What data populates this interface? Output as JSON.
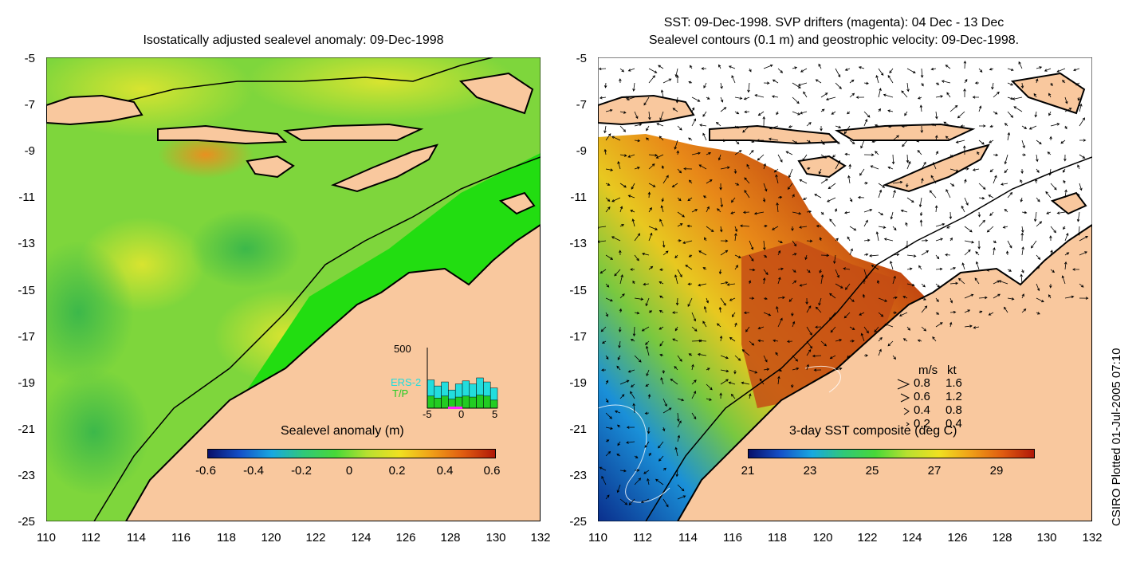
{
  "left_panel": {
    "title": "Isostatically adjusted sealevel anomaly: 09-Dec-1998",
    "colorbar": {
      "label": "Sealevel anomaly (m)",
      "ticks": [
        "-0.6",
        "-0.4",
        "-0.2",
        "0",
        "0.2",
        "0.4",
        "0.6"
      ],
      "min": -0.6,
      "max": 0.6
    },
    "histogram": {
      "ymax_label": "500",
      "legend": [
        "ERS-2",
        "T/P"
      ],
      "xticks": [
        "-5",
        "0",
        "5"
      ],
      "ers2_color": "#22dddd",
      "tp_color": "#22cc22",
      "ers2_values": [
        0.28,
        0.22,
        0.26,
        0.18,
        0.24,
        0.27,
        0.24,
        0.3,
        0.26,
        0.2
      ],
      "tp_values": [
        0.12,
        0.1,
        0.12,
        0.09,
        0.11,
        0.12,
        0.11,
        0.13,
        0.12,
        0.08
      ]
    }
  },
  "right_panel": {
    "title_line1": "SST: 09-Dec-1998. SVP drifters (magenta): 04 Dec - 13 Dec",
    "title_line2": "Sealevel contours (0.1 m) and geostrophic velocity: 09-Dec-1998.",
    "colorbar": {
      "label": "3-day SST composite (deg C)",
      "ticks": [
        "21",
        "23",
        "25",
        "27",
        "29"
      ],
      "min": 20.9,
      "max": 29.5
    },
    "velocity_legend": {
      "header_ms": "m/s",
      "header_kt": "kt",
      "rows": [
        {
          "ms": "0.8",
          "kt": "1.6"
        },
        {
          "ms": "0.6",
          "kt": "1.2"
        },
        {
          "ms": "0.4",
          "kt": "0.8"
        },
        {
          "ms": "0.2",
          "kt": "0.4"
        }
      ]
    }
  },
  "axes": {
    "y_ticks": [
      "-5",
      "-7",
      "-9",
      "-11",
      "-13",
      "-15",
      "-17",
      "-19",
      "-21",
      "-23",
      "-25"
    ],
    "x_ticks": [
      "110",
      "112",
      "114",
      "116",
      "118",
      "120",
      "122",
      "124",
      "126",
      "128",
      "130",
      "132"
    ],
    "lon_range": [
      110,
      132
    ],
    "lat_range": [
      -25,
      -5
    ]
  },
  "land_color": "#f9c89e",
  "credit": "CSIRO Plotted 01-Jul-2005 07:10"
}
